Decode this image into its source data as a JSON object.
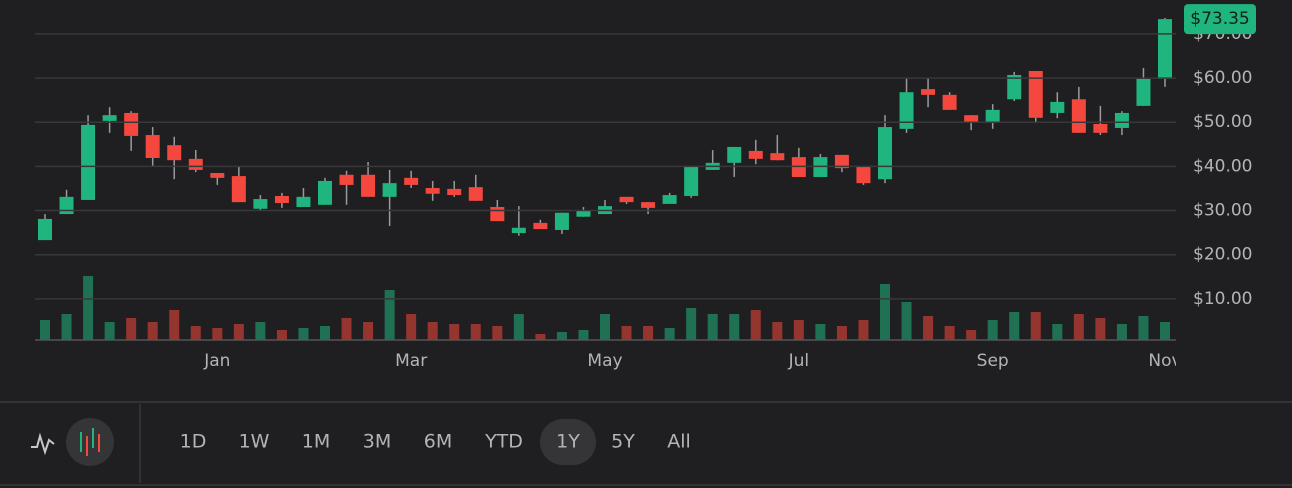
{
  "chart_data": {
    "type": "candlestick",
    "categories": [
      null,
      null,
      null,
      null,
      null,
      null,
      null,
      null,
      "Jan",
      null,
      null,
      null,
      null,
      null,
      null,
      null,
      null,
      "Mar",
      null,
      null,
      null,
      null,
      null,
      null,
      null,
      null,
      "May",
      null,
      null,
      null,
      null,
      null,
      null,
      null,
      null,
      "Jul",
      null,
      null,
      null,
      null,
      null,
      null,
      null,
      null,
      "Sep",
      null,
      null,
      null,
      null,
      null,
      null,
      null,
      "Nov"
    ],
    "open": [
      23.3,
      29.2,
      32.4,
      50.3,
      52.1,
      47.1,
      44.8,
      41.7,
      38.5,
      37.8,
      30.4,
      33.3,
      30.8,
      31.3,
      38.1,
      38.1,
      33.1,
      37.4,
      35.1,
      34.9,
      35.3,
      30.8,
      24.9,
      27.2,
      25.6,
      28.6,
      29.2,
      33.1,
      31.9,
      31.5,
      33.3,
      39.2,
      40.8,
      43.5,
      43.0,
      42.1,
      37.6,
      42.6,
      39.9,
      37.1,
      48.5,
      57.5,
      56.2,
      51.6,
      50.0,
      55.2,
      61.6,
      52.1,
      55.2,
      49.6,
      48.7,
      53.7,
      59.8
    ],
    "high": [
      29.2,
      34.7,
      51.6,
      53.4,
      52.5,
      48.9,
      46.7,
      43.7,
      38.5,
      39.9,
      33.5,
      34.0,
      35.1,
      37.4,
      39.0,
      41.0,
      39.2,
      39.0,
      36.7,
      36.7,
      38.1,
      32.4,
      31.0,
      27.9,
      29.5,
      30.8,
      32.4,
      33.1,
      31.9,
      34.0,
      40.1,
      43.7,
      44.4,
      46.0,
      47.1,
      44.2,
      42.8,
      42.6,
      39.9,
      51.6,
      60.0,
      60.0,
      56.8,
      51.6,
      54.1,
      61.4,
      61.6,
      56.8,
      58.0,
      53.7,
      52.5,
      62.3,
      73.6
    ],
    "low": [
      23.3,
      29.2,
      32.4,
      47.6,
      43.5,
      39.9,
      37.1,
      38.7,
      35.8,
      31.9,
      29.9,
      30.6,
      30.8,
      31.3,
      31.3,
      33.1,
      26.5,
      35.1,
      32.2,
      33.1,
      32.2,
      27.6,
      24.3,
      25.8,
      24.7,
      28.6,
      29.2,
      31.5,
      29.2,
      31.5,
      32.9,
      39.2,
      37.6,
      40.5,
      41.4,
      37.6,
      37.6,
      38.7,
      35.8,
      36.2,
      47.6,
      53.4,
      52.8,
      48.2,
      48.5,
      54.8,
      49.8,
      50.9,
      47.6,
      47.1,
      47.1,
      53.7,
      58.0
    ],
    "close": [
      28.1,
      33.1,
      49.4,
      51.6,
      46.9,
      41.9,
      41.4,
      39.2,
      37.4,
      31.9,
      32.6,
      31.7,
      33.1,
      36.7,
      35.8,
      33.1,
      36.2,
      35.8,
      33.8,
      33.5,
      32.2,
      27.6,
      26.1,
      25.8,
      29.5,
      30.1,
      31.0,
      31.9,
      30.6,
      33.5,
      40.1,
      40.8,
      44.4,
      41.7,
      41.4,
      37.6,
      42.1,
      39.6,
      36.2,
      48.9,
      56.8,
      56.2,
      52.8,
      50.0,
      52.8,
      60.7,
      51.0,
      54.6,
      47.6,
      47.6,
      52.1,
      59.8,
      73.35
    ],
    "volume": [
      20,
      26,
      64,
      18,
      22,
      18,
      30,
      14,
      12,
      16,
      18,
      10,
      12,
      14,
      22,
      18,
      50,
      26,
      18,
      16,
      16,
      14,
      26,
      6,
      8,
      10,
      26,
      14,
      14,
      12,
      32,
      26,
      26,
      30,
      18,
      20,
      16,
      14,
      20,
      56,
      38,
      24,
      14,
      10,
      20,
      28,
      28,
      16,
      26,
      22,
      16,
      24,
      18
    ],
    "last_price": {
      "value": 73.35,
      "label": "$73.35"
    },
    "ylim": [
      0,
      77
    ],
    "yticks": [
      {
        "value": 10,
        "label": "$10.00"
      },
      {
        "value": 20,
        "label": "$20.00"
      },
      {
        "value": 30,
        "label": "$30.00"
      },
      {
        "value": 40,
        "label": "$40.00"
      },
      {
        "value": 50,
        "label": "$50.00"
      },
      {
        "value": 60,
        "label": "$60.00"
      },
      {
        "value": 70,
        "label": "$70.00"
      }
    ],
    "grid": true,
    "up_color": "#20b47f",
    "down_color": "#f4473d"
  },
  "toolbar": {
    "ranges": [
      "1D",
      "1W",
      "1M",
      "3M",
      "6M",
      "YTD",
      "1Y",
      "5Y",
      "All"
    ],
    "selected": 6
  }
}
